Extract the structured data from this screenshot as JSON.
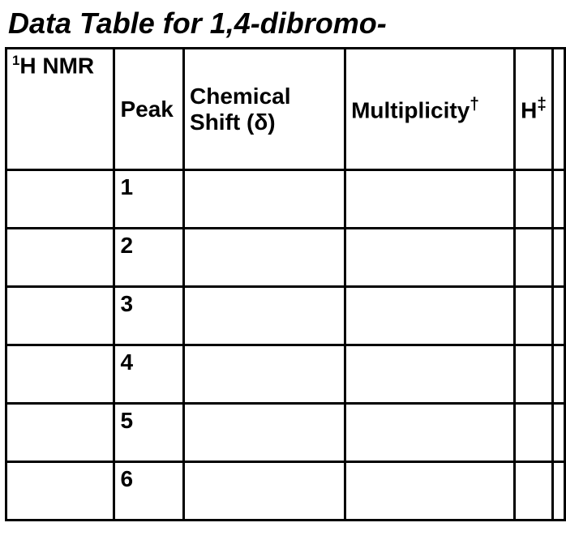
{
  "title_html": "Data Table for 1,4-dibromo-",
  "table": {
    "columns": {
      "label_html": "<sup>1</sup>H NMR",
      "peak": "Peak",
      "shift": "Chemical Shift (δ)",
      "mult_html": "Multiplicity<span class=\"dagger\">†</span>",
      "h_html": "H<span class=\"dagger\">‡</span>"
    },
    "rows": [
      {
        "peak": "1",
        "shift": "",
        "mult": "",
        "h": ""
      },
      {
        "peak": "2",
        "shift": "",
        "mult": "",
        "h": ""
      },
      {
        "peak": "3",
        "shift": "",
        "mult": "",
        "h": ""
      },
      {
        "peak": "4",
        "shift": "",
        "mult": "",
        "h": ""
      },
      {
        "peak": "5",
        "shift": "",
        "mult": "",
        "h": ""
      },
      {
        "peak": "6",
        "shift": "",
        "mult": "",
        "h": ""
      }
    ]
  },
  "style": {
    "border_color": "#000000",
    "border_width": 3,
    "background": "#ffffff",
    "text_color": "#000000",
    "title_fontsize": 36,
    "cell_fontsize": 28,
    "col_widths": {
      "label": 138,
      "peak": 86,
      "shift": 204,
      "mult": 212,
      "h": 42,
      "extra": 12
    },
    "row_heights": {
      "header": 150,
      "data": 72
    }
  }
}
